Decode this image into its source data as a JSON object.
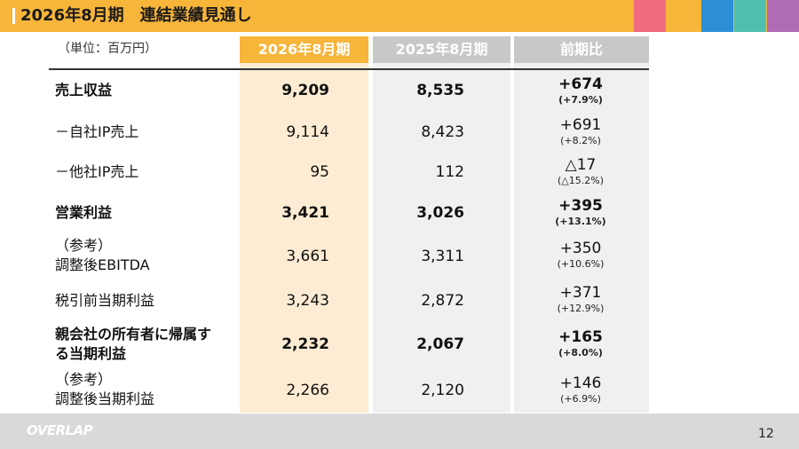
{
  "header": {
    "title": "2026年8月期　連結業績見通し"
  },
  "colors": {
    "header_bg": "#f7b53a",
    "swatches": [
      "#ef6b7d",
      "#f7b53a",
      "#2d8ed6",
      "#4fbfb1",
      "#b06bb5"
    ]
  },
  "table": {
    "unit": "（単位：百万円）",
    "columns": [
      "2026年8月期",
      "2025年8月期",
      "前期比"
    ],
    "rows": [
      {
        "label": "売上収益",
        "v2026": "9,209",
        "v2025": "8,535",
        "change": "+674",
        "change_pct": "(+7.9%)",
        "bold": true
      },
      {
        "label": "－自社IP売上",
        "v2026": "9,114",
        "v2025": "8,423",
        "change": "+691",
        "change_pct": "(+8.2%)",
        "bold": false
      },
      {
        "label": "－他社IP売上",
        "v2026": "95",
        "v2025": "112",
        "change": "△17",
        "change_pct": "(△15.2%)",
        "bold": false
      },
      {
        "label": "営業利益",
        "v2026": "3,421",
        "v2025": "3,026",
        "change": "+395",
        "change_pct": "(+13.1%)",
        "bold": true
      },
      {
        "label": "（参考）",
        "label2": "調整後EBITDA",
        "v2026": "3,661",
        "v2025": "3,311",
        "change": "+350",
        "change_pct": "(+10.6%)",
        "bold": false
      },
      {
        "label": "税引前当期利益",
        "v2026": "3,243",
        "v2025": "2,872",
        "change": "+371",
        "change_pct": "(+12.9%)",
        "bold": false
      },
      {
        "label": "親会社の所有者に帰属す",
        "label2": "る当期利益",
        "v2026": "2,232",
        "v2025": "2,067",
        "change": "+165",
        "change_pct": "(+8.0%)",
        "bold": true
      },
      {
        "label": "（参考）",
        "label2": "調整後当期利益",
        "v2026": "2,266",
        "v2025": "2,120",
        "change": "+146",
        "change_pct": "(+6.9%)",
        "bold": false
      }
    ]
  },
  "footer": {
    "logo": "OVERLAP",
    "page_number": "12"
  }
}
